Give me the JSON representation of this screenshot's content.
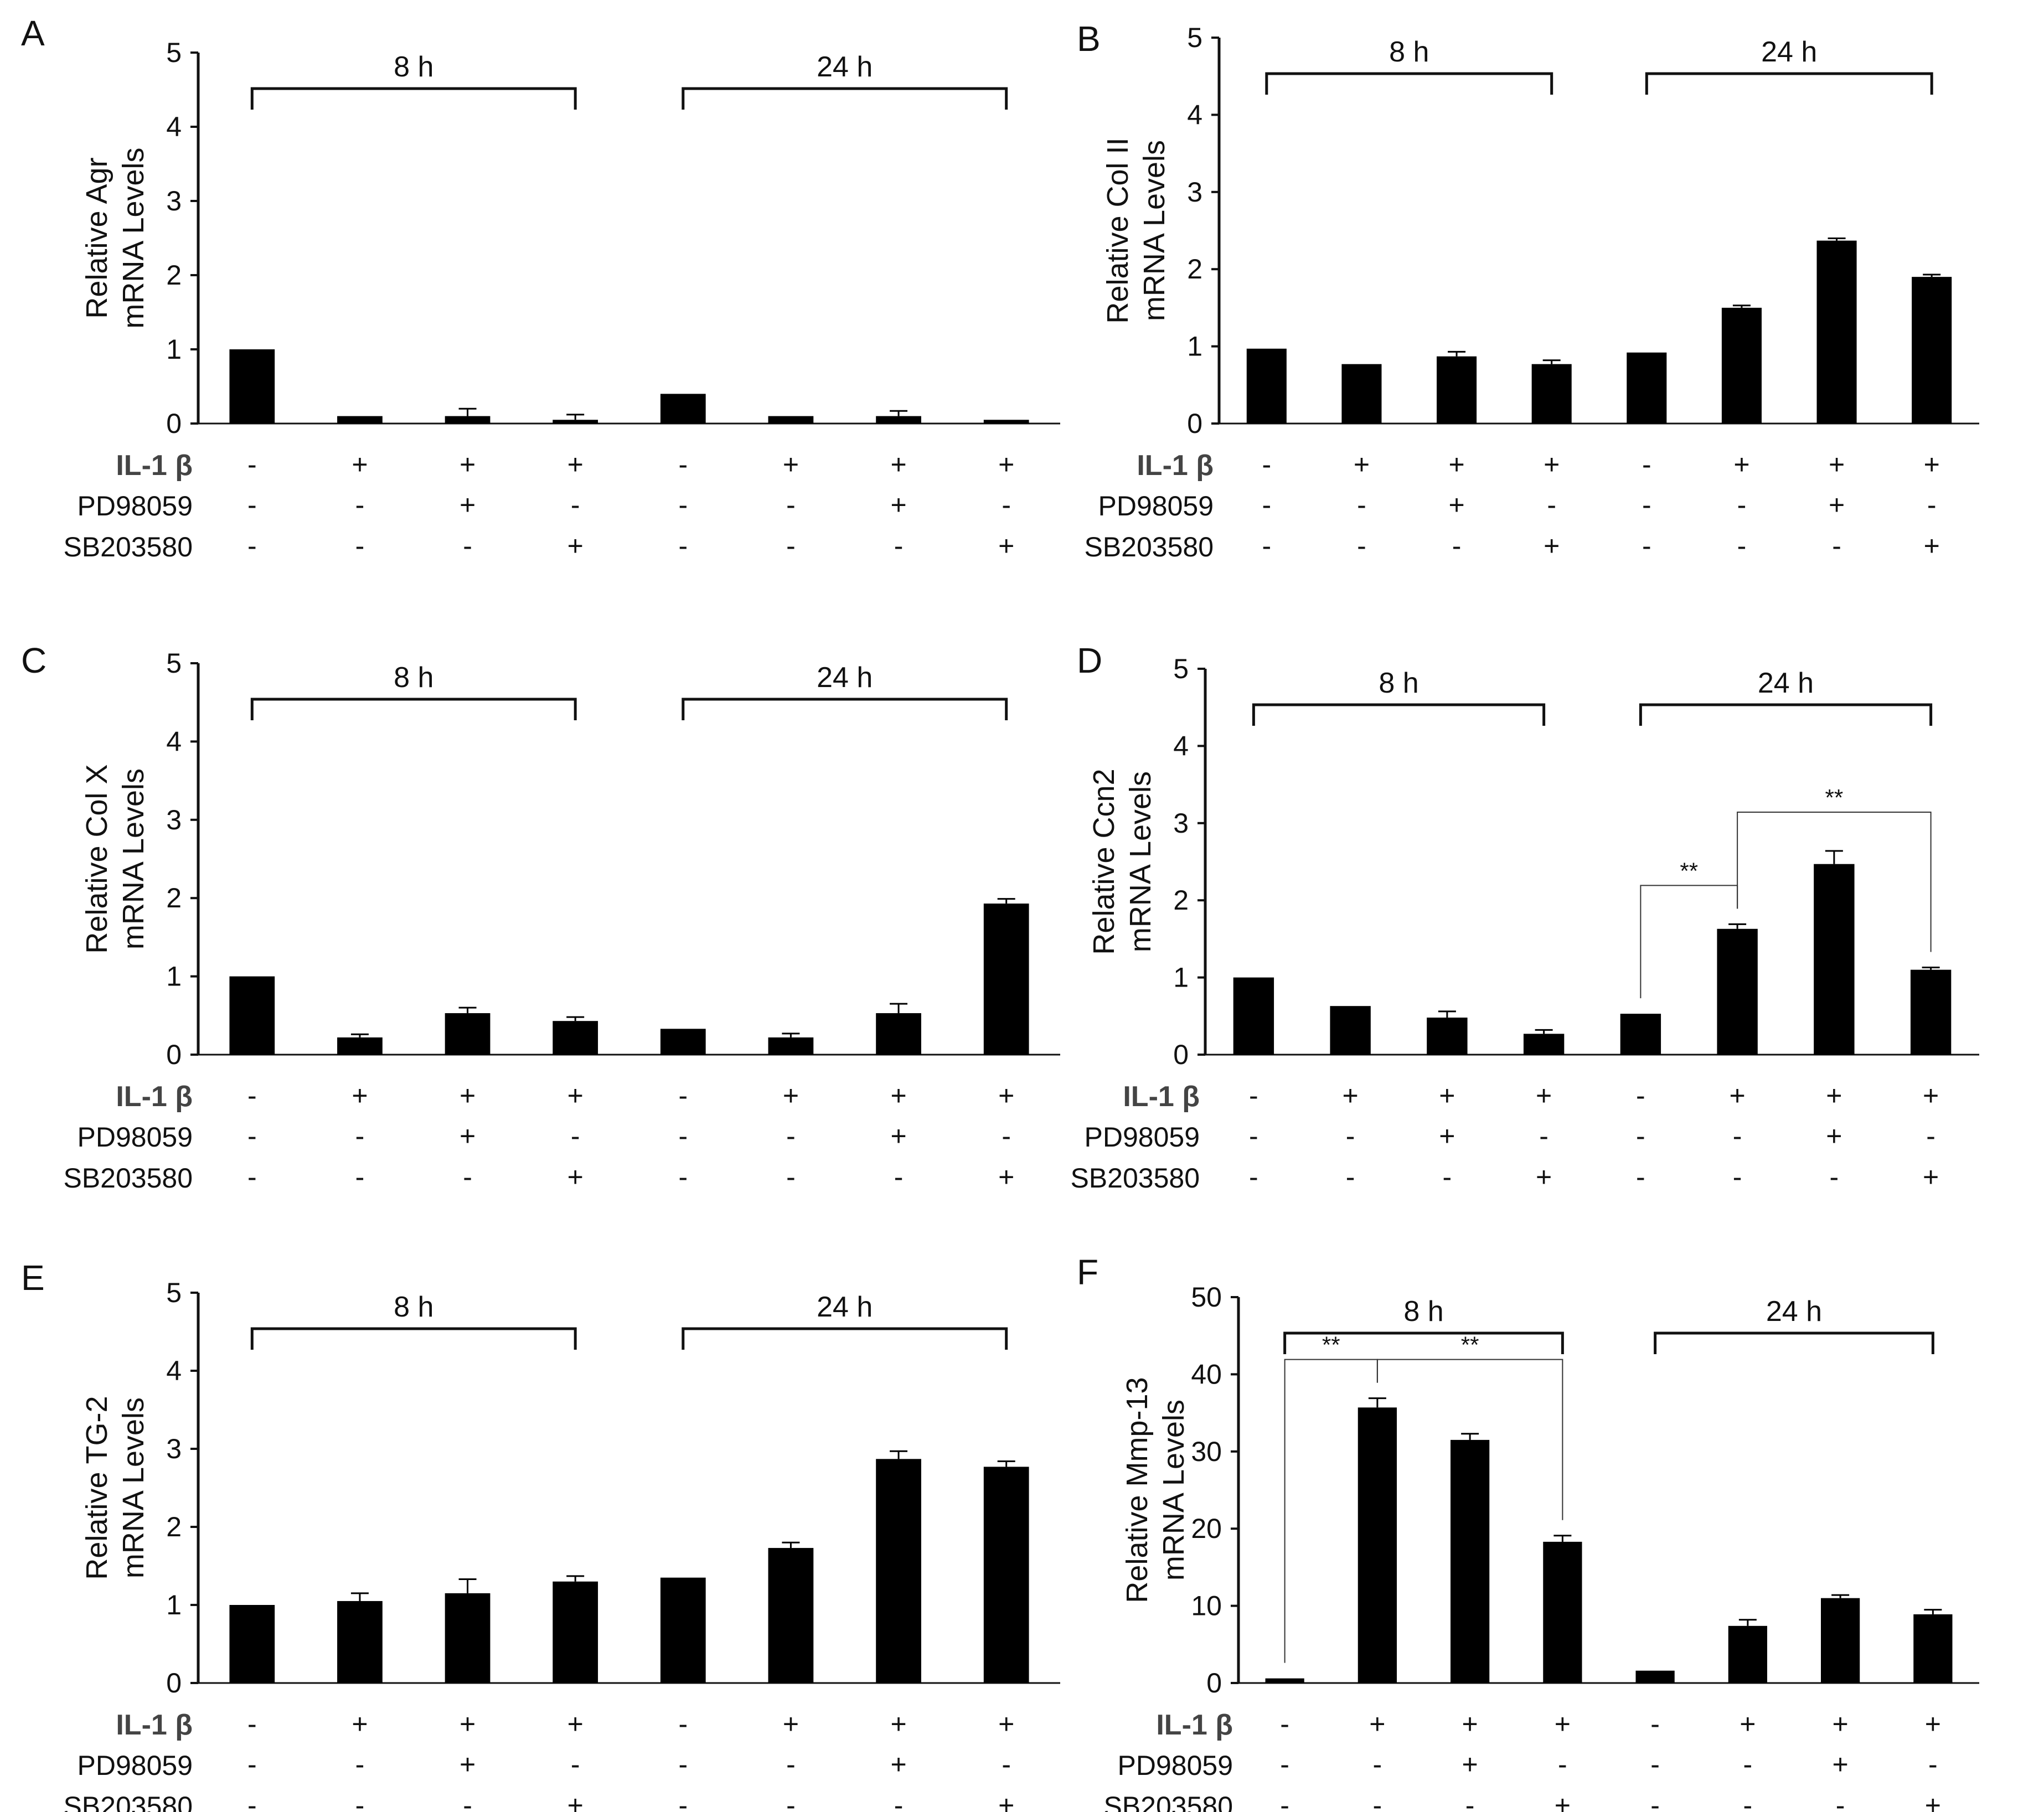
{
  "row_labels": {
    "il1b": "IL-1 β",
    "pd": "PD98059",
    "sb": "SB203580"
  },
  "groups": [
    "8 h",
    "24 h"
  ],
  "conditions": {
    "il1b": [
      "-",
      "+",
      "+",
      "+",
      "-",
      "+",
      "+",
      "+"
    ],
    "pd": [
      "-",
      "-",
      "+",
      "-",
      "-",
      "-",
      "+",
      "-"
    ],
    "sb": [
      "-",
      "-",
      "-",
      "+",
      "-",
      "-",
      "-",
      "+"
    ]
  },
  "chart_data": [
    {
      "type": "bar",
      "panel": "A",
      "ylabel": [
        "Relative Agr",
        "mRNA Levels"
      ],
      "ylim": [
        0,
        5
      ],
      "yticks": [
        "0",
        "1",
        "2",
        "3",
        "4",
        "5"
      ],
      "values": [
        1.0,
        0.1,
        0.1,
        0.05,
        0.4,
        0.1,
        0.1,
        0.05
      ],
      "errors": [
        0,
        0,
        0.1,
        0.07,
        0,
        0,
        0.07,
        0
      ],
      "significance": []
    },
    {
      "type": "bar",
      "panel": "B",
      "ylabel": [
        "Relative Col II",
        "mRNA Levels"
      ],
      "ylim": [
        0,
        5
      ],
      "yticks": [
        "0",
        "1",
        "2",
        "3",
        "4",
        "5"
      ],
      "values": [
        0.97,
        0.77,
        0.87,
        0.77,
        0.92,
        1.5,
        2.37,
        1.9
      ],
      "errors": [
        0,
        0,
        0.06,
        0.05,
        0,
        0.03,
        0.03,
        0.03
      ],
      "significance": []
    },
    {
      "type": "bar",
      "panel": "C",
      "ylabel": [
        "Relative Col X",
        "mRNA Levels"
      ],
      "ylim": [
        0,
        5
      ],
      "yticks": [
        "0",
        "1",
        "2",
        "3",
        "4",
        "5"
      ],
      "values": [
        1.0,
        0.22,
        0.53,
        0.43,
        0.33,
        0.22,
        0.53,
        1.93
      ],
      "errors": [
        0,
        0.04,
        0.07,
        0.05,
        0,
        0.05,
        0.12,
        0.06
      ],
      "significance": []
    },
    {
      "type": "bar",
      "panel": "D",
      "ylabel": [
        "Relative Ccn2",
        "mRNA Levels"
      ],
      "ylim": [
        0,
        5
      ],
      "yticks": [
        "0",
        "1",
        "2",
        "3",
        "4",
        "5"
      ],
      "values": [
        1.0,
        0.63,
        0.48,
        0.27,
        0.53,
        1.63,
        2.47,
        1.1
      ],
      "errors": [
        0,
        0,
        0.08,
        0.05,
        0,
        0.06,
        0.17,
        0.03
      ],
      "significance": [
        {
          "from": 4,
          "to": 5,
          "label": "**"
        },
        {
          "from": 5,
          "to": 7,
          "label": "**"
        }
      ]
    },
    {
      "type": "bar",
      "panel": "E",
      "ylabel": [
        "Relative TG-2",
        "mRNA Levels"
      ],
      "ylim": [
        0,
        5
      ],
      "yticks": [
        "0",
        "1",
        "2",
        "3",
        "4",
        "5"
      ],
      "values": [
        1.0,
        1.05,
        1.15,
        1.3,
        1.35,
        1.73,
        2.87,
        2.77
      ],
      "errors": [
        0,
        0.1,
        0.18,
        0.07,
        0,
        0.07,
        0.1,
        0.07
      ],
      "significance": []
    },
    {
      "type": "bar",
      "panel": "F",
      "ylabel": [
        "Relative Mmp-13",
        "mRNA Levels"
      ],
      "ylim": [
        0,
        50
      ],
      "yticks": [
        "0",
        "10",
        "20",
        "30",
        "40",
        "50"
      ],
      "values": [
        0.6,
        35.7,
        31.5,
        18.3,
        1.6,
        7.4,
        11.0,
        8.9
      ],
      "errors": [
        0,
        1.2,
        0.8,
        0.8,
        0,
        0.8,
        0.4,
        0.6
      ],
      "significance": [
        {
          "from": 0,
          "to": 1,
          "label": "**"
        },
        {
          "from": 1,
          "to": 3,
          "label": "**"
        }
      ]
    }
  ]
}
